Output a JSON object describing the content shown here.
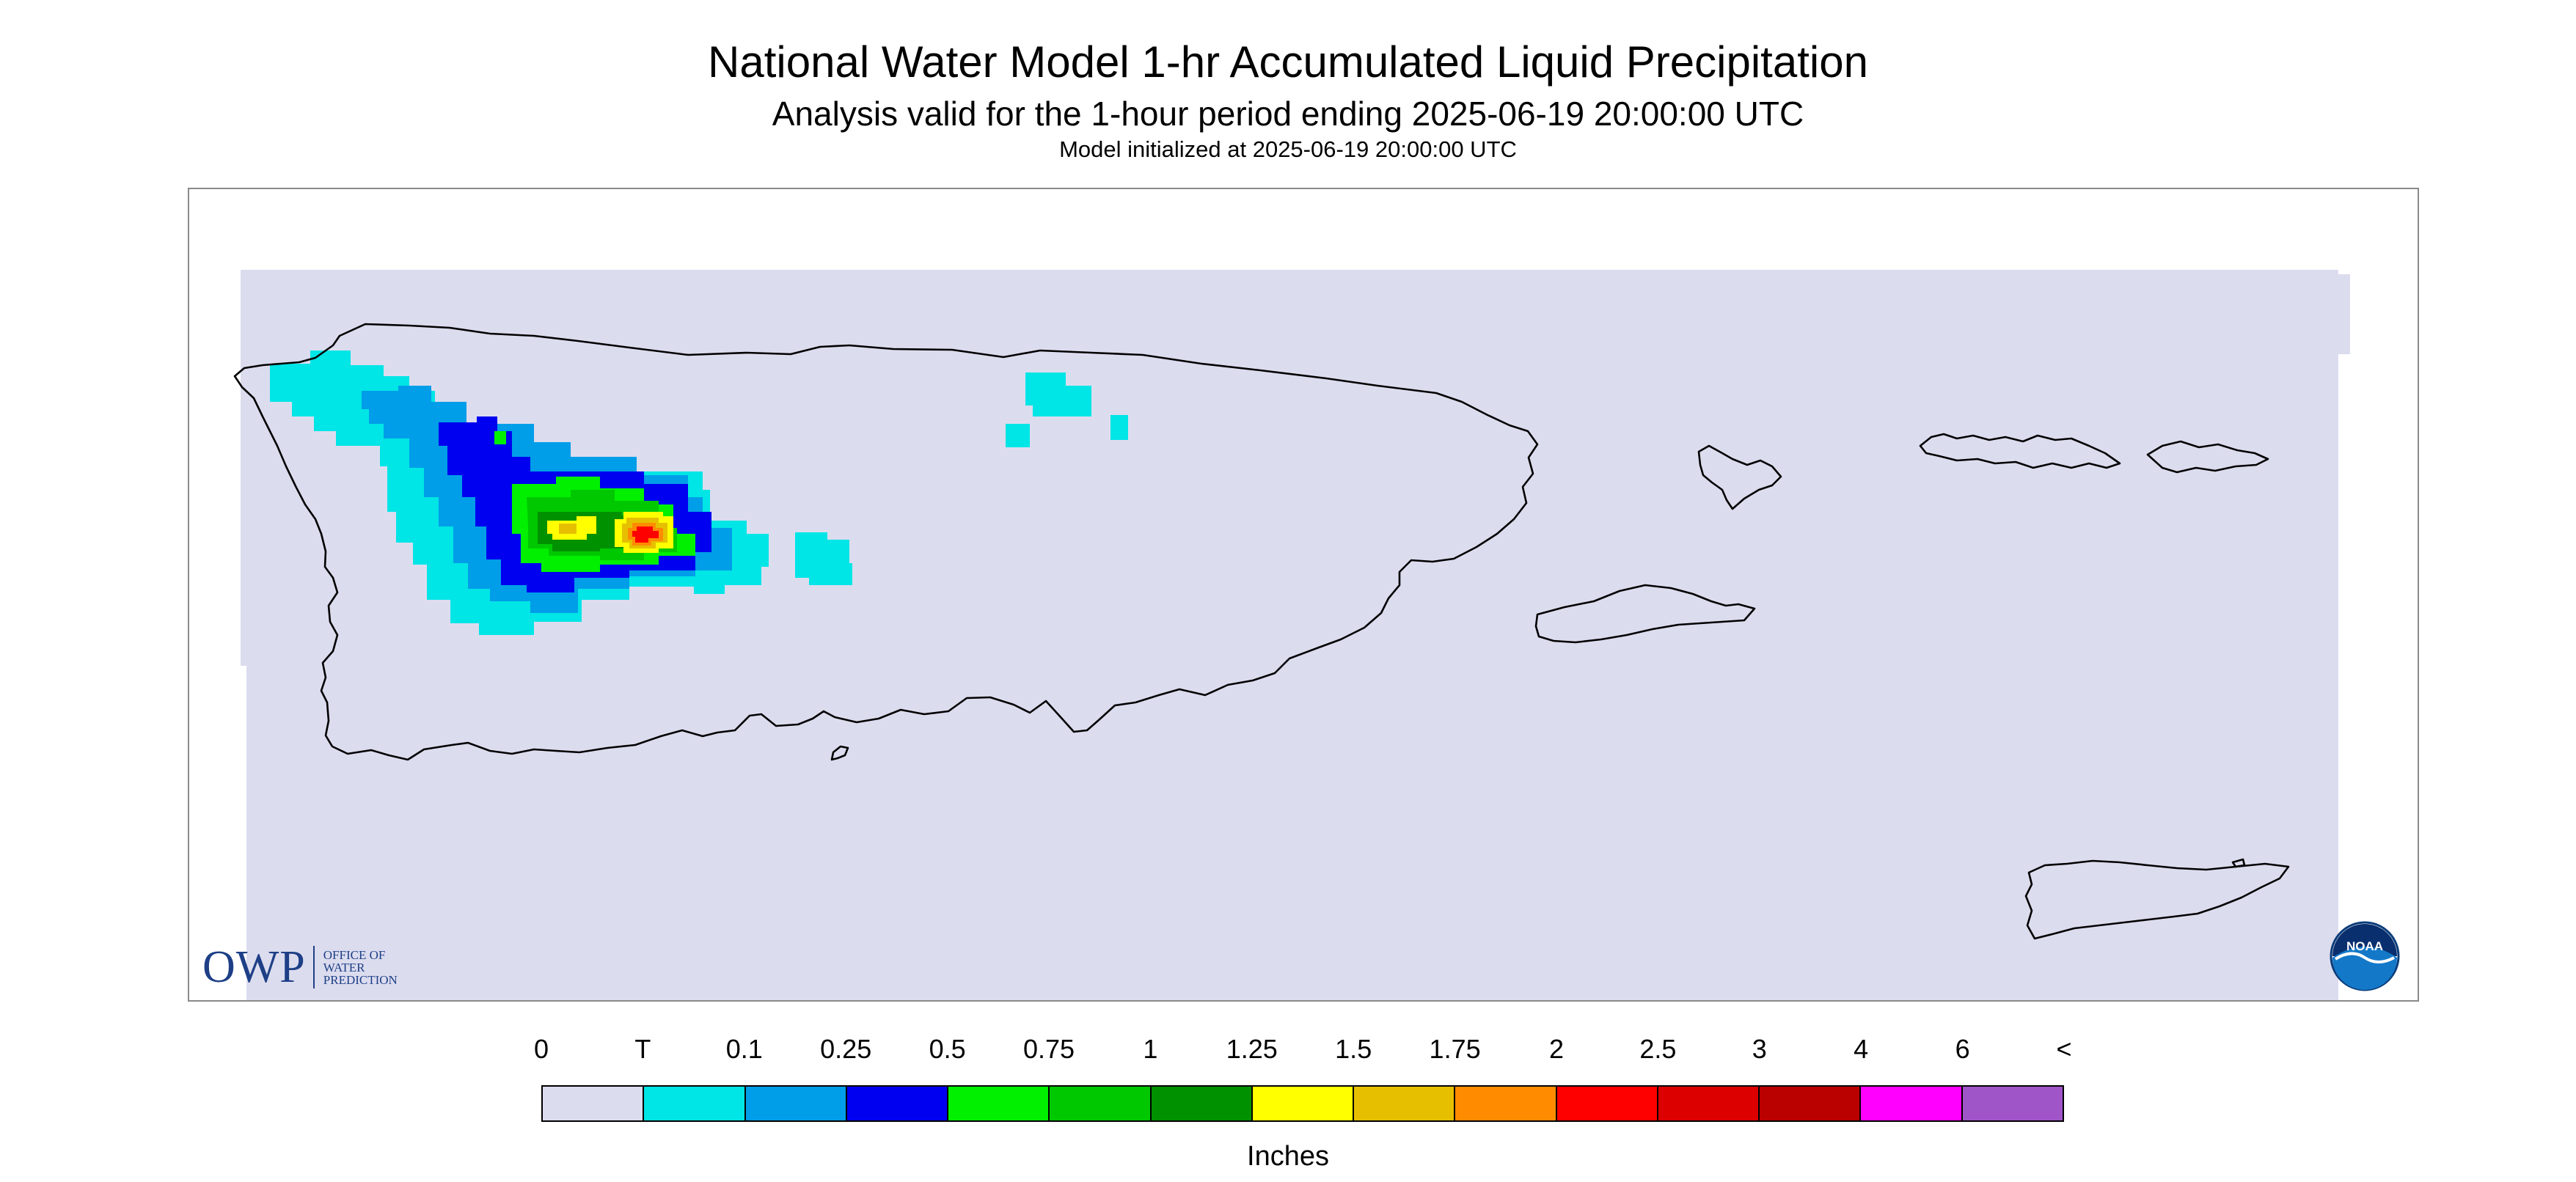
{
  "header": {
    "title": "National Water Model 1-hr Accumulated Liquid Precipitation",
    "subtitle": "Analysis valid for the 1-hour period ending 2025-06-19 20:00:00 UTC",
    "init_line": "Model initialized at 2025-06-19 20:00:00 UTC"
  },
  "map": {
    "region": "Puerto Rico and U.S. Virgin Islands",
    "background_color": "#dcdcef",
    "outline_color": "#000000",
    "rain_feature": {
      "location": "western Puerto Rico, north-central interior",
      "peak_bin": "2",
      "peak_color": "#ff0000"
    }
  },
  "logos": {
    "owp": {
      "letters": "OWP",
      "line1": "OFFICE OF",
      "line2": "WATER",
      "line3": "PREDICTION",
      "color": "#1d3f86"
    },
    "noaa": {
      "label": "NOAA",
      "color": "#0a5aa8"
    }
  },
  "legend": {
    "labels": [
      "0",
      "T",
      "0.1",
      "0.25",
      "0.5",
      "0.75",
      "1",
      "1.25",
      "1.5",
      "1.75",
      "2",
      "2.5",
      "3",
      "4",
      "6",
      "<"
    ],
    "colors": [
      "#dcdcef",
      "#00e5e5",
      "#009ee8",
      "#0000f0",
      "#00f000",
      "#00c800",
      "#009100",
      "#ffff00",
      "#e6c000",
      "#ff8c00",
      "#ff0000",
      "#dc0000",
      "#bb0000",
      "#ff00ff",
      "#9f55c8"
    ],
    "units": "Inches"
  }
}
